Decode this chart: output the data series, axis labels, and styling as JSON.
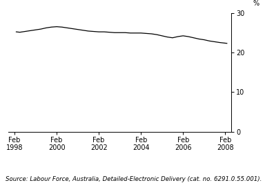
{
  "x_years": [
    1998.08,
    1998.25,
    1998.5,
    1998.75,
    1999.0,
    1999.25,
    1999.5,
    1999.75,
    2000.0,
    2000.25,
    2000.5,
    2000.75,
    2001.0,
    2001.25,
    2001.5,
    2001.75,
    2002.0,
    2002.25,
    2002.5,
    2002.75,
    2003.0,
    2003.25,
    2003.5,
    2003.75,
    2004.0,
    2004.25,
    2004.5,
    2004.75,
    2005.0,
    2005.25,
    2005.5,
    2005.75,
    2006.0,
    2006.25,
    2006.5,
    2006.75,
    2007.0,
    2007.25,
    2007.5,
    2007.75,
    2008.08
  ],
  "y_values": [
    25.2,
    25.1,
    25.3,
    25.5,
    25.7,
    25.9,
    26.2,
    26.4,
    26.5,
    26.4,
    26.2,
    26.0,
    25.8,
    25.6,
    25.4,
    25.3,
    25.2,
    25.2,
    25.1,
    25.0,
    25.0,
    25.0,
    24.9,
    24.9,
    24.9,
    24.8,
    24.7,
    24.5,
    24.2,
    23.9,
    23.7,
    24.0,
    24.2,
    24.0,
    23.7,
    23.4,
    23.2,
    22.9,
    22.7,
    22.5,
    22.3
  ],
  "x_ticks": [
    1998,
    2000,
    2002,
    2004,
    2006,
    2008
  ],
  "x_tick_labels": [
    "Feb\n1998",
    "Feb\n2000",
    "Feb\n2002",
    "Feb\n2004",
    "Feb\n2006",
    "Feb\n2008"
  ],
  "y_ticks": [
    0,
    10,
    20,
    30
  ],
  "y_tick_labels": [
    "0",
    "10",
    "20",
    "30"
  ],
  "ylim": [
    0,
    30
  ],
  "xlim": [
    1997.7,
    2008.3
  ],
  "ylabel": "%",
  "line_color": "#000000",
  "line_width": 0.9,
  "source_text": "Source: Labour Force, Australia, Detailed-Electronic Delivery (cat. no. 6291.0.55.001).",
  "background_color": "#ffffff",
  "tick_fontsize": 7.0,
  "source_fontsize": 6.2
}
